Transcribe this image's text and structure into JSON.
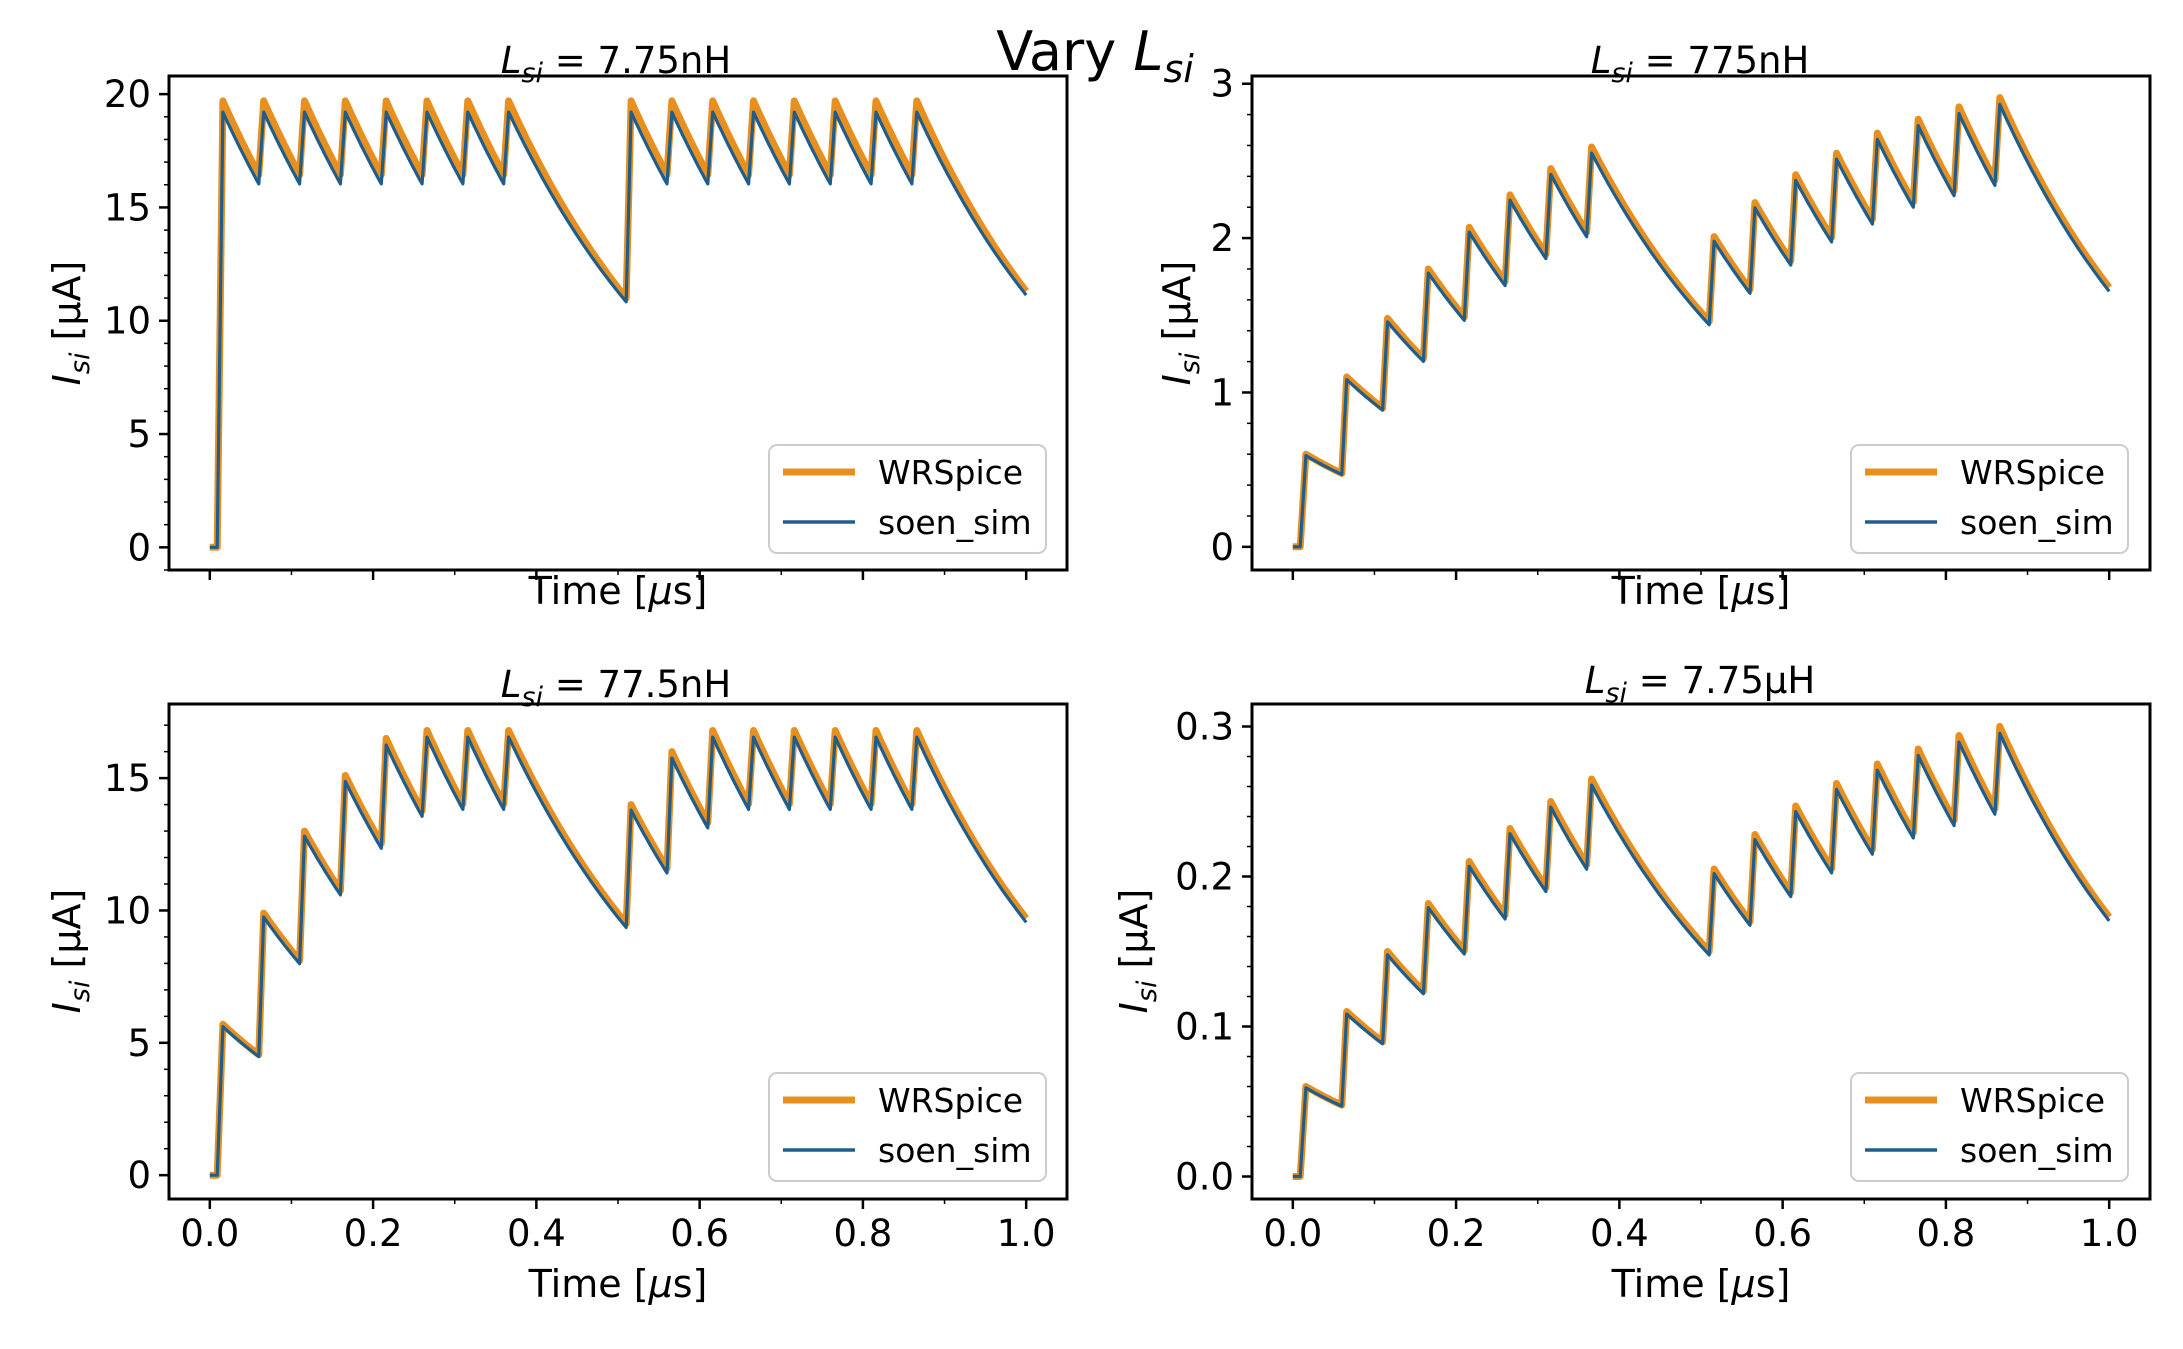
{
  "figure": {
    "suptitle_main": "Vary ",
    "suptitle_var": "L",
    "suptitle_sub": "si"
  },
  "colors": {
    "wrspice": "#e8901f",
    "soen_sim": "#1f5e8c"
  },
  "legend": {
    "wrspice": "WRSpice",
    "soen_sim": "soen_sim"
  },
  "chart_data": [
    {
      "type": "line",
      "title_var": "L",
      "title_sub": "si",
      "title_value": " = 7.75nH",
      "xlabel_main": "Time [",
      "xlabel_mu": "μ",
      "xlabel_end": "s]",
      "ylabel_var": "I",
      "ylabel_sub": "si",
      "ylabel_unit": " [μA]",
      "xlim": [
        -0.05,
        1.05
      ],
      "ylim": [
        -1,
        20.8
      ],
      "yticks": [
        0,
        5,
        10,
        15,
        20
      ],
      "ytick_labels": [
        "0",
        "5",
        "10",
        "15",
        "20"
      ],
      "xticks": [
        0.0,
        0.2,
        0.4,
        0.6,
        0.8,
        1.0
      ],
      "show_xtick_labels": false,
      "legend_position": "lower-right",
      "onset": 0.01,
      "peak_wr": 19.7,
      "peak_soen": 19.5,
      "decay_tau": 0.14,
      "pulses": [
        0.01,
        0.06,
        0.11,
        0.16,
        0.21,
        0.26,
        0.31,
        0.36,
        0.51,
        0.56,
        0.61,
        0.66,
        0.71,
        0.76,
        0.81,
        0.86
      ],
      "end_value": 11.3,
      "gap_min": 11.0,
      "series": [
        {
          "name": "WRSpice"
        },
        {
          "name": "soen_sim"
        }
      ]
    },
    {
      "type": "line",
      "title_var": "L",
      "title_sub": "si",
      "title_value": " = 775nH",
      "xlabel_main": "Time [",
      "xlabel_mu": "μ",
      "xlabel_end": "s]",
      "ylabel_var": "I",
      "ylabel_sub": "si",
      "ylabel_unit": " [μA]",
      "xlim": [
        -0.05,
        1.05
      ],
      "ylim": [
        -0.15,
        3.05
      ],
      "yticks": [
        0,
        1,
        2,
        3
      ],
      "ytick_labels": [
        "0",
        "1",
        "2",
        "3"
      ],
      "xticks": [
        0.0,
        0.2,
        0.4,
        0.6,
        0.8,
        1.0
      ],
      "show_xtick_labels": false,
      "legend_position": "lower-right",
      "peaks": [
        0.6,
        1.1,
        1.48,
        1.8,
        2.07,
        2.28,
        2.45,
        2.59,
        2.01,
        2.23,
        2.41,
        2.55,
        2.68,
        2.77,
        2.85,
        2.91
      ],
      "pulses": [
        0.01,
        0.06,
        0.11,
        0.16,
        0.21,
        0.26,
        0.31,
        0.36,
        0.51,
        0.56,
        0.61,
        0.66,
        0.71,
        0.76,
        0.81,
        0.86
      ],
      "end_value": 1.68,
      "gap_min": 1.46,
      "series": [
        {
          "name": "WRSpice"
        },
        {
          "name": "soen_sim"
        }
      ]
    },
    {
      "type": "line",
      "title_var": "L",
      "title_sub": "si",
      "title_value": " = 77.5nH",
      "xlabel_main": "Time [",
      "xlabel_mu": "μ",
      "xlabel_end": "s]",
      "ylabel_var": "I",
      "ylabel_sub": "si",
      "ylabel_unit": " [μA]",
      "xlim": [
        -0.05,
        1.05
      ],
      "ylim": [
        -0.9,
        17.8
      ],
      "yticks": [
        0,
        5,
        10,
        15
      ],
      "ytick_labels": [
        "0",
        "5",
        "10",
        "15"
      ],
      "xticks": [
        0.0,
        0.2,
        0.4,
        0.6,
        0.8,
        1.0
      ],
      "xtick_labels": [
        "0.0",
        "0.2",
        "0.4",
        "0.6",
        "0.8",
        "1.0"
      ],
      "show_xtick_labels": true,
      "legend_position": "lower-right",
      "peaks": [
        5.7,
        9.9,
        13.0,
        15.1,
        16.5,
        16.8,
        16.8,
        16.8,
        14.0,
        16.0,
        16.8,
        16.8,
        16.8,
        16.8,
        16.8,
        16.8
      ],
      "pulses": [
        0.01,
        0.06,
        0.11,
        0.16,
        0.21,
        0.26,
        0.31,
        0.36,
        0.51,
        0.56,
        0.61,
        0.66,
        0.71,
        0.76,
        0.81,
        0.86
      ],
      "end_value": 9.7,
      "gap_min": 9.5,
      "series": [
        {
          "name": "WRSpice"
        },
        {
          "name": "soen_sim"
        }
      ]
    },
    {
      "type": "line",
      "title_var": "L",
      "title_sub": "si",
      "title_value": " = 7.75μH",
      "xlabel_main": "Time [",
      "xlabel_mu": "μ",
      "xlabel_end": "s]",
      "ylabel_var": "I",
      "ylabel_sub": "si",
      "ylabel_unit": " [μA]",
      "xlim": [
        -0.05,
        1.05
      ],
      "ylim": [
        -0.015,
        0.315
      ],
      "yticks": [
        0.0,
        0.1,
        0.2,
        0.3
      ],
      "ytick_labels": [
        "0.0",
        "0.1",
        "0.2",
        "0.3"
      ],
      "xticks": [
        0.0,
        0.2,
        0.4,
        0.6,
        0.8,
        1.0
      ],
      "xtick_labels": [
        "0.0",
        "0.2",
        "0.4",
        "0.6",
        "0.8",
        "1.0"
      ],
      "show_xtick_labels": true,
      "legend_position": "lower-right",
      "peaks": [
        0.06,
        0.11,
        0.15,
        0.182,
        0.21,
        0.232,
        0.25,
        0.265,
        0.205,
        0.228,
        0.247,
        0.262,
        0.275,
        0.285,
        0.294,
        0.3
      ],
      "pulses": [
        0.01,
        0.06,
        0.11,
        0.16,
        0.21,
        0.26,
        0.31,
        0.36,
        0.51,
        0.56,
        0.61,
        0.66,
        0.71,
        0.76,
        0.81,
        0.86
      ],
      "end_value": 0.173,
      "gap_min": 0.15,
      "series": [
        {
          "name": "WRSpice"
        },
        {
          "name": "soen_sim"
        }
      ]
    }
  ]
}
